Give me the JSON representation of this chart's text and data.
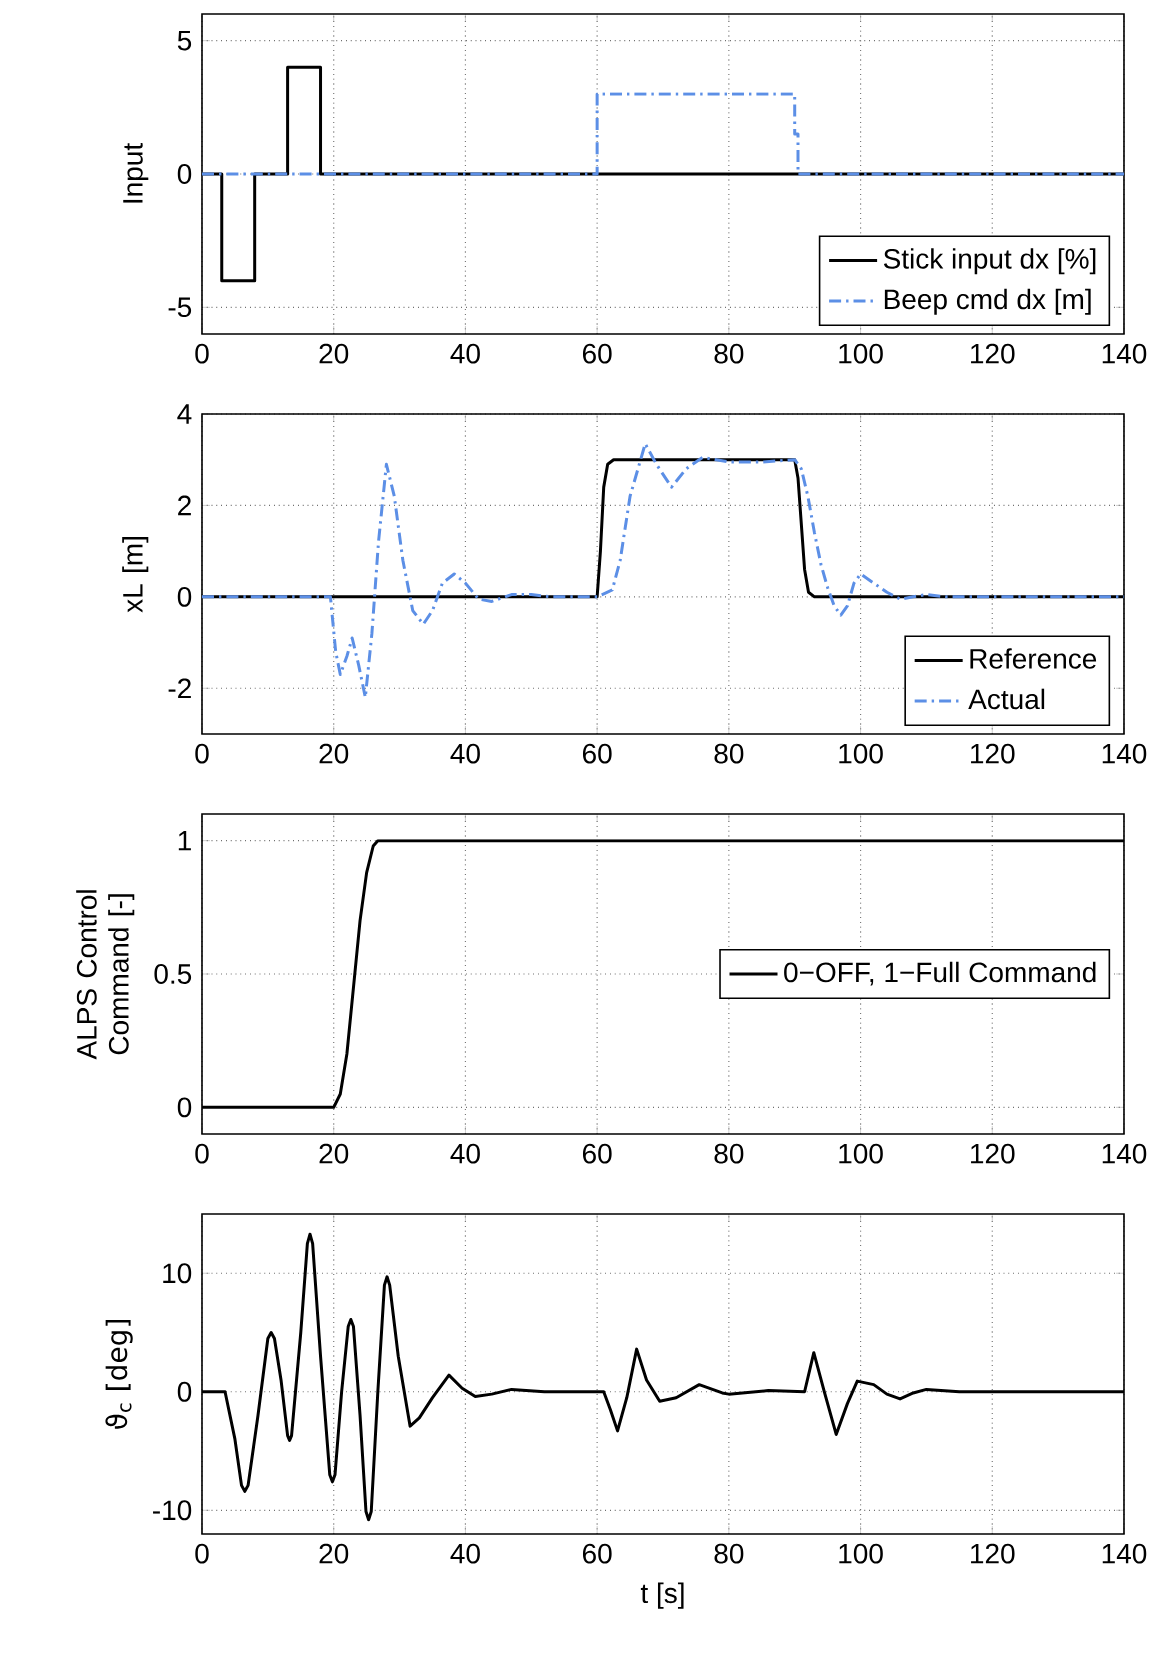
{
  "chart_data": [
    {
      "type": "step",
      "ylabel": "Input",
      "xlim": [
        0,
        140
      ],
      "ylim": [
        -6,
        6
      ],
      "xticks": [
        0,
        20,
        40,
        60,
        80,
        100,
        120,
        140
      ],
      "yticks": [
        -5,
        0,
        5
      ],
      "grid": true,
      "legend": "bottom right",
      "series": [
        {
          "name": "Stick input dx [%]",
          "color": "#000000",
          "line_style": "solid",
          "x": [
            0,
            3,
            8,
            13,
            18,
            140
          ],
          "values": [
            0,
            -4,
            0,
            4,
            0,
            0
          ]
        },
        {
          "name": "Beep cmd dx [m]",
          "color": "#5c8fe6",
          "line_style": "dashdot",
          "x": [
            0,
            60,
            90,
            90.5,
            140
          ],
          "values": [
            0,
            3,
            1.5,
            0,
            0
          ]
        }
      ]
    },
    {
      "type": "line",
      "ylabel": "xL [m]",
      "xlim": [
        0,
        140
      ],
      "ylim": [
        -3,
        4
      ],
      "xticks": [
        0,
        20,
        40,
        60,
        80,
        100,
        120,
        140
      ],
      "yticks": [
        -2,
        0,
        2,
        4
      ],
      "grid": true,
      "legend": "bottom right",
      "series": [
        {
          "name": "Reference",
          "color": "#000000",
          "line_style": "solid",
          "x": [
            0,
            60,
            60.5,
            61,
            61.6,
            62.5,
            90,
            90.5,
            91,
            91.5,
            92.1,
            93,
            140
          ],
          "values": [
            0,
            0,
            1,
            2.4,
            2.9,
            3,
            3,
            2.6,
            1.6,
            0.6,
            0.1,
            0,
            0
          ]
        },
        {
          "name": "Actual",
          "color": "#5c8fe6",
          "line_style": "dashdot",
          "x": [
            0,
            19.5,
            20.3,
            21,
            22,
            22.8,
            23.8,
            24.8,
            25.8,
            26.8,
            28,
            29.2,
            30.5,
            32,
            33.6,
            35,
            36.5,
            38.3,
            40,
            42,
            44,
            47,
            50,
            53,
            60,
            62.3,
            63.5,
            65,
            67.3,
            69,
            71.3,
            73.5,
            76,
            80,
            85,
            90,
            91,
            92,
            93,
            94,
            95,
            96,
            97,
            98,
            99,
            100,
            102,
            104,
            106,
            108,
            110,
            113,
            140
          ],
          "values": [
            0,
            0,
            -1.2,
            -1.7,
            -1.3,
            -0.9,
            -1.5,
            -2.2,
            -0.8,
            1.2,
            2.9,
            2.2,
            0.8,
            -0.3,
            -0.6,
            -0.3,
            0.3,
            0.5,
            0.3,
            -0.05,
            -0.1,
            0.05,
            0.05,
            0,
            0,
            0.15,
            0.8,
            2.2,
            3.35,
            2.9,
            2.4,
            2.8,
            3.05,
            2.95,
            2.95,
            3,
            2.8,
            2.2,
            1.4,
            0.7,
            0.2,
            -0.2,
            -0.4,
            -0.2,
            0.3,
            0.5,
            0.3,
            0.1,
            -0.05,
            0,
            0.05,
            0,
            0
          ]
        }
      ]
    },
    {
      "type": "line",
      "ylabel": "ALPS Control Command [-]",
      "xlim": [
        0,
        140
      ],
      "ylim": [
        -0.1,
        1.1
      ],
      "xticks": [
        0,
        20,
        40,
        60,
        80,
        100,
        120,
        140
      ],
      "yticks": [
        0,
        0.5,
        1
      ],
      "grid": true,
      "legend": "right",
      "series": [
        {
          "name": "0−OFF, 1−Full Command",
          "color": "#000000",
          "line_style": "solid",
          "x": [
            0,
            20,
            21,
            22,
            23,
            24,
            25,
            26,
            26.7,
            140
          ],
          "values": [
            0,
            0,
            0.05,
            0.2,
            0.45,
            0.7,
            0.88,
            0.98,
            1,
            1
          ]
        }
      ]
    },
    {
      "type": "line",
      "ylabel": "ϑ$_{c}$ [deg]",
      "xlabel": "t [s]",
      "xlim": [
        0,
        140
      ],
      "ylim": [
        -12,
        15
      ],
      "xticks": [
        0,
        20,
        40,
        60,
        80,
        100,
        120,
        140
      ],
      "yticks": [
        -10,
        0,
        10
      ],
      "grid": true,
      "series": [
        {
          "color": "#000000",
          "line_style": "solid",
          "x": [
            0,
            3.5,
            5,
            6,
            6.5,
            7,
            8.5,
            10,
            10.5,
            11,
            12,
            13,
            13.3,
            13.6,
            15,
            16,
            16.4,
            16.8,
            18,
            19.4,
            19.8,
            20.2,
            21.2,
            22.2,
            22.6,
            23,
            24,
            24.9,
            25.3,
            25.7,
            26.7,
            27.7,
            28.1,
            28.5,
            29.8,
            31.6,
            33,
            35,
            37.5,
            39.5,
            41.5,
            44,
            47,
            52,
            61,
            62,
            63.1,
            64.5,
            66,
            67.5,
            69.5,
            72,
            75.5,
            79,
            80,
            86,
            91.5,
            92.9,
            94.5,
            96.3,
            98,
            99.5,
            102,
            104,
            106,
            108,
            110,
            115,
            140
          ],
          "values": [
            0,
            0,
            -4,
            -7.9,
            -8.4,
            -7.9,
            -2,
            4.5,
            5,
            4.5,
            1,
            -3.7,
            -4.1,
            -3.7,
            5,
            12.5,
            13.3,
            12.5,
            3,
            -7,
            -7.6,
            -7,
            0,
            5.5,
            6.1,
            5.5,
            -2,
            -10.1,
            -10.8,
            -10.1,
            0,
            9,
            9.7,
            9,
            3,
            -2.9,
            -2.2,
            -0.5,
            1.4,
            0.3,
            -0.4,
            -0.2,
            0.2,
            0,
            0,
            -1.5,
            -3.3,
            -0.5,
            3.6,
            1,
            -0.8,
            -0.5,
            0.6,
            -0.1,
            -0.2,
            0.1,
            0,
            3.3,
            0,
            -3.6,
            -1,
            0.9,
            0.6,
            -0.2,
            -0.6,
            -0.1,
            0.2,
            0,
            0
          ]
        }
      ]
    }
  ]
}
